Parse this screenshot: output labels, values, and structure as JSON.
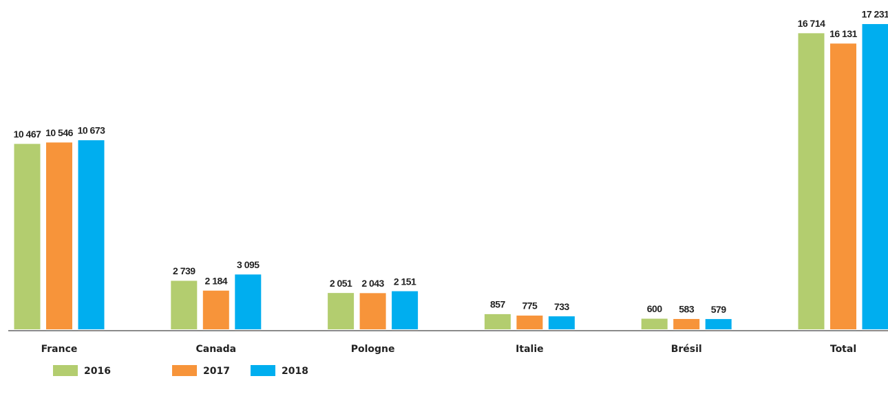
{
  "chart_data": {
    "type": "bar",
    "categories": [
      "France",
      "Canada",
      "Pologne",
      "Italie",
      "Brésil",
      "Total"
    ],
    "series": [
      {
        "name": "2016",
        "color": "#b3cd6f",
        "values": [
          10467,
          2739,
          2051,
          857,
          600,
          16714
        ],
        "value_labels": [
          "10 467",
          "2 739",
          "2 051",
          "857",
          "600",
          "16 714"
        ]
      },
      {
        "name": "2017",
        "color": "#f7943a",
        "values": [
          10546,
          2184,
          2043,
          775,
          583,
          16131
        ],
        "value_labels": [
          "10 546",
          "2 184",
          "2 043",
          "775",
          "583",
          "16 131"
        ]
      },
      {
        "name": "2018",
        "color": "#00aeef",
        "values": [
          10673,
          3095,
          2151,
          733,
          579,
          17231
        ],
        "value_labels": [
          "10 673",
          "3 095",
          "2 151",
          "733",
          "579",
          "17 231"
        ]
      }
    ],
    "legend": "bottom-left"
  }
}
